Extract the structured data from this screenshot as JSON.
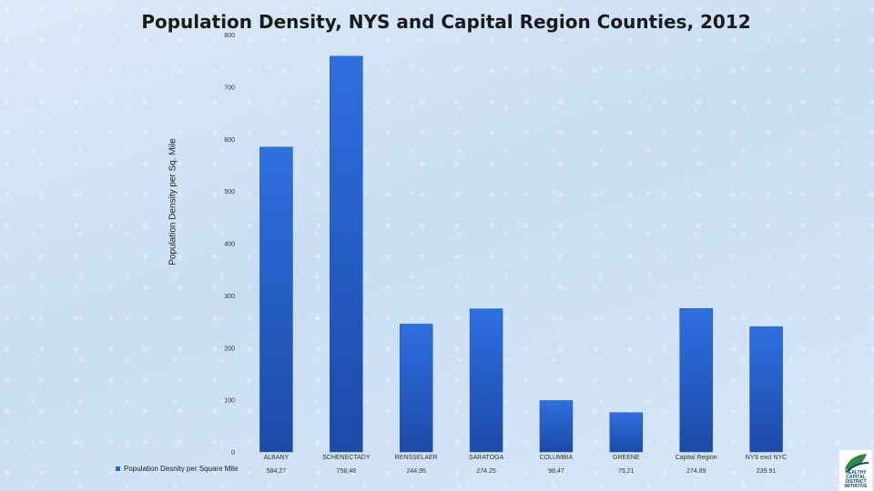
{
  "chart_data": {
    "type": "bar",
    "title": "Population Density, NYS and Capital Region Counties, 2012",
    "ylabel": "Population Density per Sq. Mile",
    "xlabel": "",
    "ylim": [
      0,
      800
    ],
    "yticks": [
      0,
      100,
      200,
      300,
      400,
      500,
      600,
      700,
      800
    ],
    "categories": [
      "ALBANY",
      "SCHENECTADY",
      "RENSSELAER",
      "SARATOGA",
      "COLUMBIA",
      "GREENE",
      "Capital Region",
      "NYS excl NYC"
    ],
    "series": [
      {
        "name": "Population Desnity per Square Mile",
        "values": [
          584.27,
          758.48,
          244.95,
          274.25,
          98.47,
          75.21,
          274.89,
          239.91
        ],
        "value_labels": [
          "584,27",
          "758,48",
          "244,95",
          "274,25",
          "98,47",
          "75,21",
          "274,89",
          "239,91"
        ]
      }
    ]
  },
  "colors": {
    "bar": "#2a67d6",
    "bar_dark": "#1d4fae"
  },
  "logo": {
    "text": "HEALTHY CAPITAL DISTRICT INITIATIVE"
  }
}
